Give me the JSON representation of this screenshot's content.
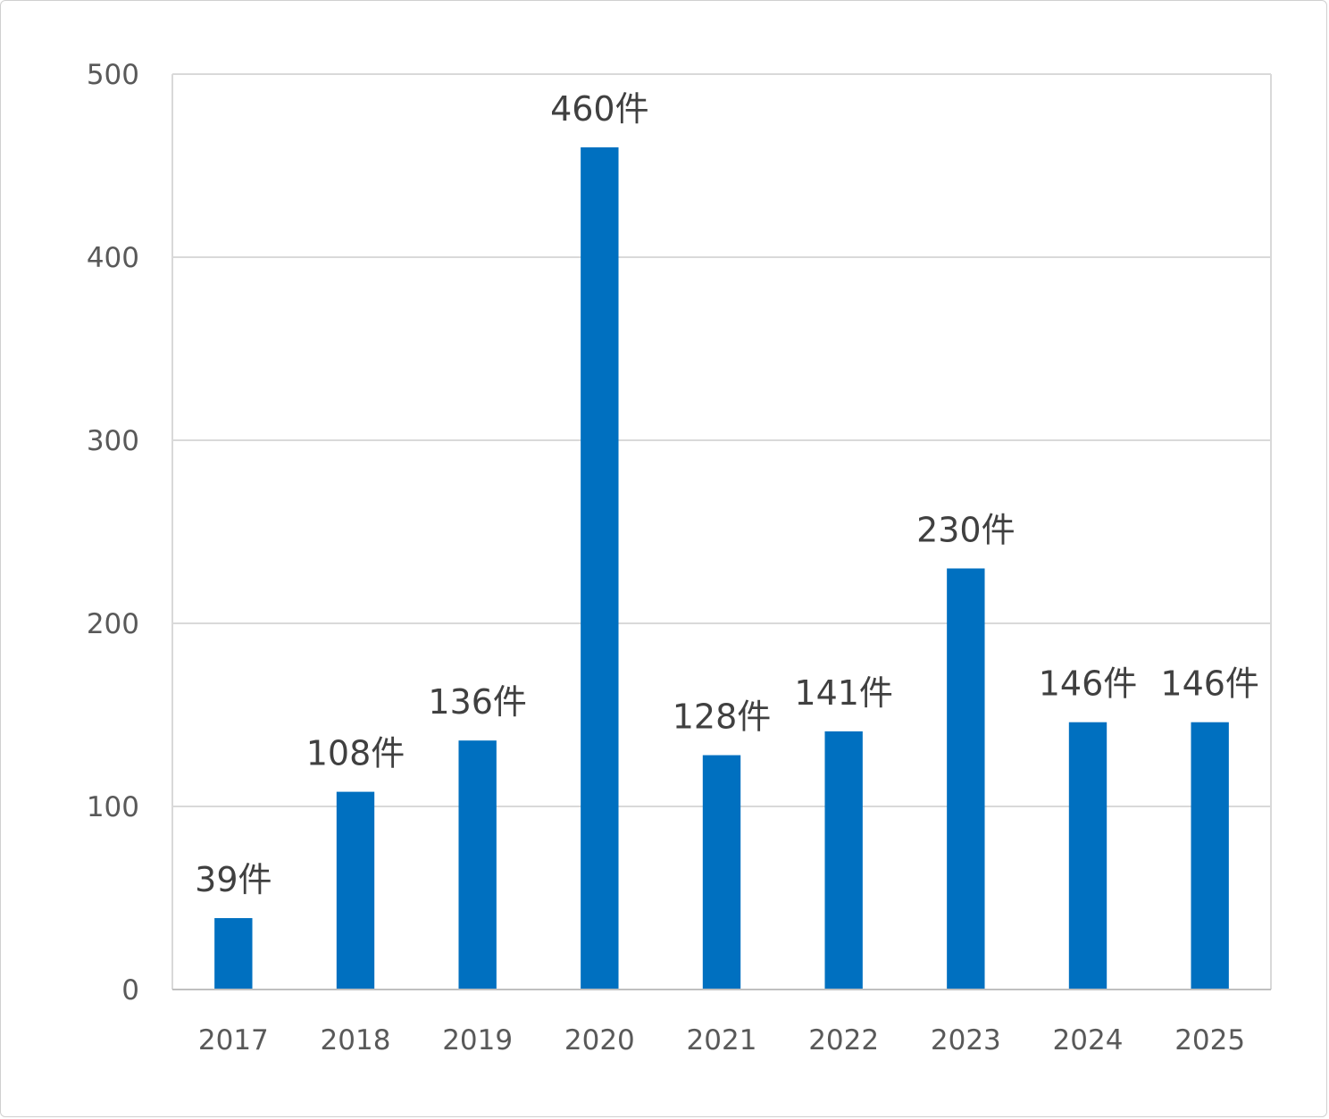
{
  "chart_data": {
    "type": "bar",
    "categories": [
      "2017",
      "2018",
      "2019",
      "2020",
      "2021",
      "2022",
      "2023",
      "2024",
      "2025"
    ],
    "values": [
      39,
      108,
      136,
      460,
      128,
      141,
      230,
      146,
      146
    ],
    "data_labels": [
      "39件",
      "108件",
      "136件",
      "460件",
      "128件",
      "141件",
      "230件",
      "146件",
      "146件"
    ],
    "y_ticks": [
      "0",
      "100",
      "200",
      "300",
      "400",
      "500"
    ],
    "ylim": [
      0,
      500
    ],
    "grid": true,
    "title": "",
    "xlabel": "",
    "ylabel": "",
    "bar_color": "#0070C0",
    "grid_color": "#D9D9D9"
  }
}
